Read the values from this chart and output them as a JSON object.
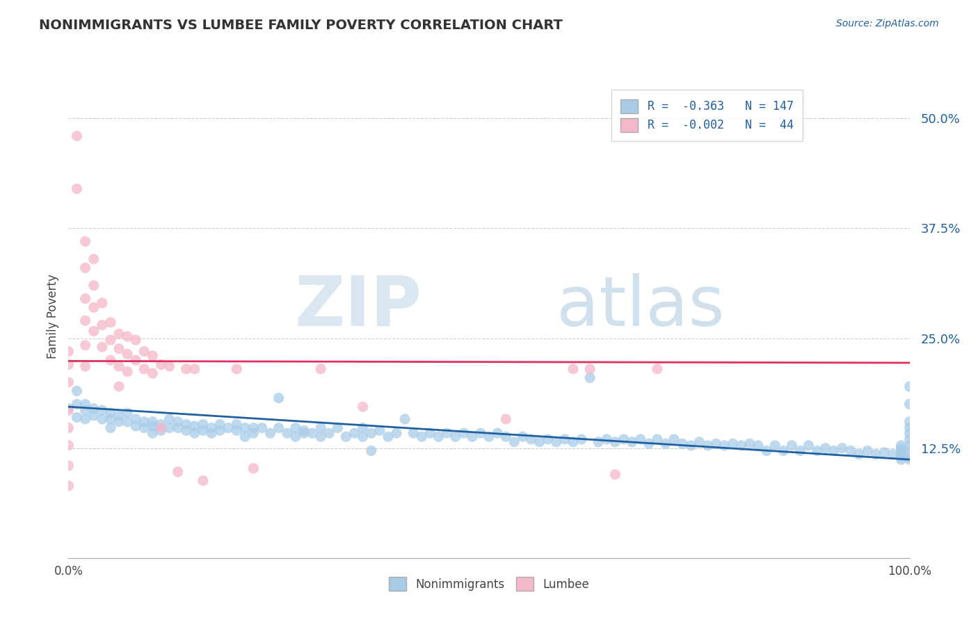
{
  "title": "NONIMMIGRANTS VS LUMBEE FAMILY POVERTY CORRELATION CHART",
  "source_text": "Source: ZipAtlas.com",
  "ylabel": "Family Poverty",
  "xlim": [
    0.0,
    1.0
  ],
  "ylim": [
    0.0,
    0.55
  ],
  "yticks": [
    0.125,
    0.25,
    0.375,
    0.5
  ],
  "ytick_labels": [
    "12.5%",
    "25.0%",
    "37.5%",
    "50.0%"
  ],
  "xtick_positions": [
    0.0,
    0.25,
    0.5,
    0.75,
    1.0
  ],
  "xtick_labels": [
    "0.0%",
    "",
    "",
    "",
    "100.0%"
  ],
  "blue_color": "#a8cce8",
  "pink_color": "#f5b8c8",
  "trend_blue": "#2060a0",
  "trend_pink": "#e03060",
  "watermark_zip": "ZIP",
  "watermark_atlas": "atlas",
  "nonimmigrant_data": [
    [
      0.0,
      0.17
    ],
    [
      0.01,
      0.19
    ],
    [
      0.01,
      0.175
    ],
    [
      0.01,
      0.16
    ],
    [
      0.02,
      0.175
    ],
    [
      0.02,
      0.168
    ],
    [
      0.02,
      0.158
    ],
    [
      0.03,
      0.17
    ],
    [
      0.03,
      0.162
    ],
    [
      0.04,
      0.168
    ],
    [
      0.04,
      0.158
    ],
    [
      0.05,
      0.165
    ],
    [
      0.05,
      0.158
    ],
    [
      0.05,
      0.148
    ],
    [
      0.06,
      0.162
    ],
    [
      0.06,
      0.155
    ],
    [
      0.07,
      0.165
    ],
    [
      0.07,
      0.155
    ],
    [
      0.08,
      0.158
    ],
    [
      0.08,
      0.15
    ],
    [
      0.09,
      0.155
    ],
    [
      0.09,
      0.148
    ],
    [
      0.1,
      0.155
    ],
    [
      0.1,
      0.15
    ],
    [
      0.1,
      0.142
    ],
    [
      0.11,
      0.152
    ],
    [
      0.11,
      0.145
    ],
    [
      0.12,
      0.148
    ],
    [
      0.12,
      0.158
    ],
    [
      0.13,
      0.155
    ],
    [
      0.13,
      0.148
    ],
    [
      0.14,
      0.152
    ],
    [
      0.14,
      0.145
    ],
    [
      0.15,
      0.15
    ],
    [
      0.15,
      0.142
    ],
    [
      0.16,
      0.152
    ],
    [
      0.16,
      0.145
    ],
    [
      0.17,
      0.148
    ],
    [
      0.17,
      0.142
    ],
    [
      0.18,
      0.152
    ],
    [
      0.18,
      0.145
    ],
    [
      0.19,
      0.148
    ],
    [
      0.2,
      0.152
    ],
    [
      0.2,
      0.145
    ],
    [
      0.21,
      0.148
    ],
    [
      0.21,
      0.138
    ],
    [
      0.22,
      0.148
    ],
    [
      0.22,
      0.142
    ],
    [
      0.23,
      0.148
    ],
    [
      0.24,
      0.142
    ],
    [
      0.25,
      0.182
    ],
    [
      0.25,
      0.148
    ],
    [
      0.26,
      0.142
    ],
    [
      0.27,
      0.148
    ],
    [
      0.27,
      0.138
    ],
    [
      0.28,
      0.145
    ],
    [
      0.28,
      0.142
    ],
    [
      0.29,
      0.142
    ],
    [
      0.3,
      0.148
    ],
    [
      0.3,
      0.138
    ],
    [
      0.31,
      0.142
    ],
    [
      0.32,
      0.148
    ],
    [
      0.33,
      0.138
    ],
    [
      0.34,
      0.142
    ],
    [
      0.35,
      0.138
    ],
    [
      0.35,
      0.148
    ],
    [
      0.36,
      0.142
    ],
    [
      0.36,
      0.122
    ],
    [
      0.37,
      0.145
    ],
    [
      0.38,
      0.138
    ],
    [
      0.39,
      0.142
    ],
    [
      0.4,
      0.158
    ],
    [
      0.41,
      0.142
    ],
    [
      0.42,
      0.138
    ],
    [
      0.43,
      0.142
    ],
    [
      0.44,
      0.138
    ],
    [
      0.45,
      0.142
    ],
    [
      0.46,
      0.138
    ],
    [
      0.47,
      0.142
    ],
    [
      0.48,
      0.138
    ],
    [
      0.49,
      0.142
    ],
    [
      0.5,
      0.138
    ],
    [
      0.51,
      0.142
    ],
    [
      0.52,
      0.138
    ],
    [
      0.53,
      0.132
    ],
    [
      0.54,
      0.138
    ],
    [
      0.55,
      0.135
    ],
    [
      0.56,
      0.132
    ],
    [
      0.57,
      0.135
    ],
    [
      0.58,
      0.132
    ],
    [
      0.59,
      0.135
    ],
    [
      0.6,
      0.132
    ],
    [
      0.61,
      0.135
    ],
    [
      0.62,
      0.205
    ],
    [
      0.63,
      0.132
    ],
    [
      0.64,
      0.135
    ],
    [
      0.65,
      0.132
    ],
    [
      0.66,
      0.135
    ],
    [
      0.67,
      0.132
    ],
    [
      0.68,
      0.135
    ],
    [
      0.69,
      0.13
    ],
    [
      0.7,
      0.135
    ],
    [
      0.71,
      0.13
    ],
    [
      0.72,
      0.135
    ],
    [
      0.73,
      0.13
    ],
    [
      0.74,
      0.128
    ],
    [
      0.75,
      0.132
    ],
    [
      0.76,
      0.128
    ],
    [
      0.77,
      0.13
    ],
    [
      0.78,
      0.128
    ],
    [
      0.79,
      0.13
    ],
    [
      0.8,
      0.128
    ],
    [
      0.81,
      0.13
    ],
    [
      0.82,
      0.128
    ],
    [
      0.83,
      0.122
    ],
    [
      0.84,
      0.128
    ],
    [
      0.85,
      0.122
    ],
    [
      0.86,
      0.128
    ],
    [
      0.87,
      0.122
    ],
    [
      0.88,
      0.128
    ],
    [
      0.89,
      0.122
    ],
    [
      0.9,
      0.125
    ],
    [
      0.91,
      0.122
    ],
    [
      0.92,
      0.125
    ],
    [
      0.93,
      0.122
    ],
    [
      0.94,
      0.118
    ],
    [
      0.95,
      0.122
    ],
    [
      0.96,
      0.118
    ],
    [
      0.97,
      0.12
    ],
    [
      0.98,
      0.118
    ],
    [
      0.99,
      0.12
    ],
    [
      0.99,
      0.115
    ],
    [
      0.99,
      0.125
    ],
    [
      0.99,
      0.128
    ],
    [
      0.99,
      0.112
    ],
    [
      0.99,
      0.118
    ],
    [
      0.99,
      0.122
    ],
    [
      1.0,
      0.195
    ],
    [
      1.0,
      0.175
    ],
    [
      1.0,
      0.155
    ],
    [
      1.0,
      0.148
    ],
    [
      1.0,
      0.142
    ],
    [
      1.0,
      0.135
    ],
    [
      1.0,
      0.128
    ],
    [
      1.0,
      0.122
    ],
    [
      1.0,
      0.115
    ],
    [
      1.0,
      0.112
    ]
  ],
  "lumbee_data": [
    [
      0.0,
      0.235
    ],
    [
      0.0,
      0.22
    ],
    [
      0.0,
      0.2
    ],
    [
      0.0,
      0.168
    ],
    [
      0.0,
      0.148
    ],
    [
      0.0,
      0.128
    ],
    [
      0.0,
      0.105
    ],
    [
      0.0,
      0.082
    ],
    [
      0.01,
      0.48
    ],
    [
      0.01,
      0.42
    ],
    [
      0.02,
      0.36
    ],
    [
      0.02,
      0.33
    ],
    [
      0.02,
      0.295
    ],
    [
      0.02,
      0.27
    ],
    [
      0.02,
      0.242
    ],
    [
      0.02,
      0.218
    ],
    [
      0.03,
      0.34
    ],
    [
      0.03,
      0.31
    ],
    [
      0.03,
      0.285
    ],
    [
      0.03,
      0.258
    ],
    [
      0.04,
      0.29
    ],
    [
      0.04,
      0.265
    ],
    [
      0.04,
      0.24
    ],
    [
      0.05,
      0.268
    ],
    [
      0.05,
      0.248
    ],
    [
      0.05,
      0.225
    ],
    [
      0.06,
      0.255
    ],
    [
      0.06,
      0.238
    ],
    [
      0.06,
      0.218
    ],
    [
      0.06,
      0.195
    ],
    [
      0.07,
      0.252
    ],
    [
      0.07,
      0.232
    ],
    [
      0.07,
      0.212
    ],
    [
      0.08,
      0.248
    ],
    [
      0.08,
      0.225
    ],
    [
      0.09,
      0.235
    ],
    [
      0.09,
      0.215
    ],
    [
      0.1,
      0.23
    ],
    [
      0.1,
      0.21
    ],
    [
      0.11,
      0.22
    ],
    [
      0.11,
      0.148
    ],
    [
      0.12,
      0.218
    ],
    [
      0.13,
      0.098
    ],
    [
      0.14,
      0.215
    ],
    [
      0.15,
      0.215
    ],
    [
      0.16,
      0.088
    ],
    [
      0.2,
      0.215
    ],
    [
      0.22,
      0.102
    ],
    [
      0.3,
      0.215
    ],
    [
      0.35,
      0.172
    ],
    [
      0.52,
      0.158
    ],
    [
      0.6,
      0.215
    ],
    [
      0.62,
      0.215
    ],
    [
      0.65,
      0.095
    ],
    [
      0.7,
      0.215
    ]
  ]
}
